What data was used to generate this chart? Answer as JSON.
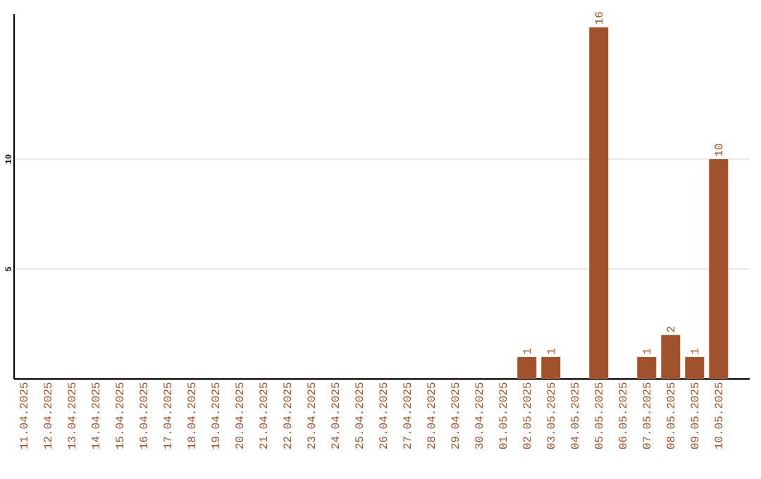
{
  "chart_data": {
    "type": "bar",
    "categories": [
      "11.04.2025",
      "12.04.2025",
      "13.04.2025",
      "14.04.2025",
      "15.04.2025",
      "16.04.2025",
      "17.04.2025",
      "18.04.2025",
      "19.04.2025",
      "20.04.2025",
      "21.04.2025",
      "22.04.2025",
      "23.04.2025",
      "24.04.2025",
      "25.04.2025",
      "26.04.2025",
      "27.04.2025",
      "28.04.2025",
      "29.04.2025",
      "30.04.2025",
      "01.05.2025",
      "02.05.2025",
      "03.05.2025",
      "04.05.2025",
      "05.05.2025",
      "06.05.2025",
      "07.05.2025",
      "08.05.2025",
      "09.05.2025",
      "10.05.2025"
    ],
    "values": [
      0,
      0,
      0,
      0,
      0,
      0,
      0,
      0,
      0,
      0,
      0,
      0,
      0,
      0,
      0,
      0,
      0,
      0,
      0,
      0,
      0,
      1,
      1,
      0,
      16,
      0,
      1,
      2,
      1,
      10
    ],
    "value_labels": [
      null,
      null,
      null,
      null,
      null,
      null,
      null,
      null,
      null,
      null,
      null,
      null,
      null,
      null,
      null,
      null,
      null,
      null,
      null,
      null,
      null,
      "1",
      "1",
      null,
      "16",
      null,
      "1",
      "2",
      "1",
      "10"
    ],
    "color": "#a0522d",
    "ylim": [
      0,
      16.6
    ],
    "yticks": [
      5,
      10
    ],
    "grid": "y"
  }
}
